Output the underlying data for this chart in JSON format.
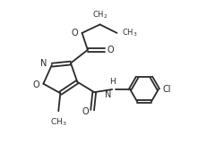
{
  "bg_color": "#ffffff",
  "line_color": "#2a2a2a",
  "line_width": 1.3,
  "font_size": 7.0,
  "figsize": [
    2.21,
    1.79
  ],
  "dpi": 100,
  "xlim": [
    0,
    10.5
  ],
  "ylim": [
    0,
    8.5
  ]
}
